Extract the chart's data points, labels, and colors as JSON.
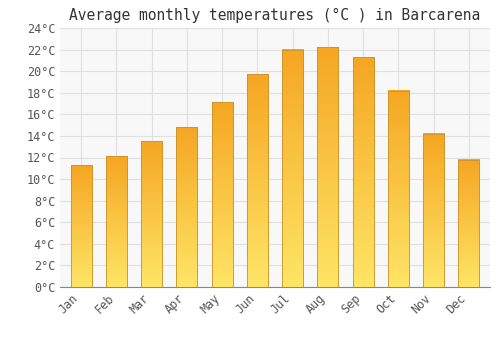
{
  "months": [
    "Jan",
    "Feb",
    "Mar",
    "Apr",
    "May",
    "Jun",
    "Jul",
    "Aug",
    "Sep",
    "Oct",
    "Nov",
    "Dec"
  ],
  "temperatures": [
    11.3,
    12.1,
    13.5,
    14.8,
    17.1,
    19.7,
    22.0,
    22.2,
    21.3,
    18.2,
    14.2,
    11.8
  ],
  "title": "Average monthly temperatures (°C ) in Barcarena",
  "bar_color_top": "#F5A623",
  "bar_color_bottom": "#FFE566",
  "bar_edge_color": "#C8922A",
  "ylim": [
    0,
    24
  ],
  "ytick_step": 2,
  "background_color": "#ffffff",
  "plot_bg_color": "#f8f8f8",
  "grid_color": "#e0e0e0",
  "title_fontsize": 10.5,
  "tick_fontsize": 8.5,
  "font_family": "monospace"
}
